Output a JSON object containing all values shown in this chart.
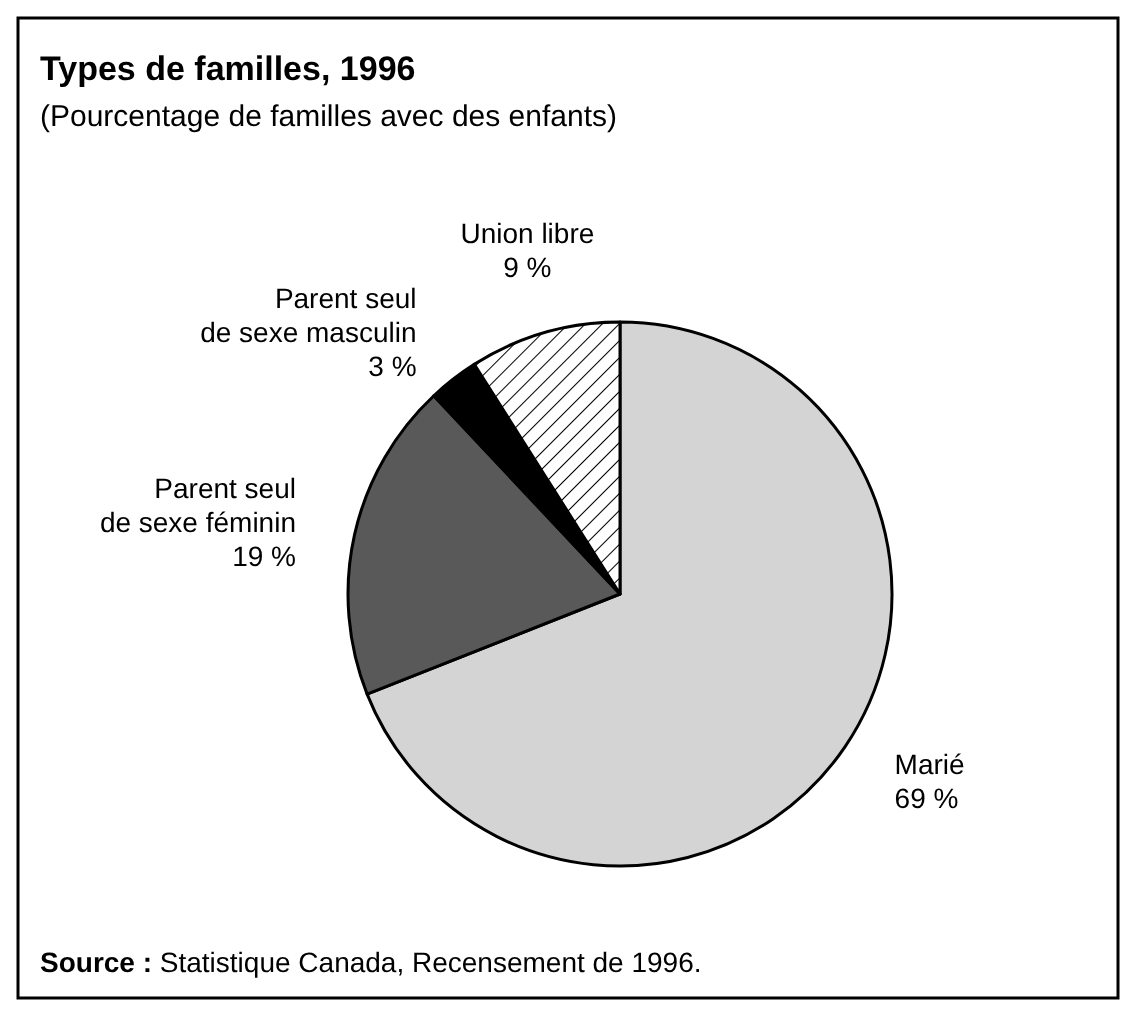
{
  "chart_data": {
    "type": "pie",
    "title": "Types de familles, 1996",
    "subtitle": "(Pourcentage de familles avec des enfants)",
    "categories": [
      "Marié",
      "Parent seul\nde sexe féminin",
      "Parent seul\nde sexe masculin",
      "Union libre"
    ],
    "values": [
      69,
      19,
      3,
      9
    ],
    "value_labels": [
      "69 %",
      "19 %",
      "3 %",
      "9 %"
    ],
    "colors": [
      "#d4d4d4",
      "#595959",
      "#000000",
      "#ffffff"
    ],
    "annotations": [
      "Source : Statistique Canada, Recensement de 1996."
    ]
  }
}
